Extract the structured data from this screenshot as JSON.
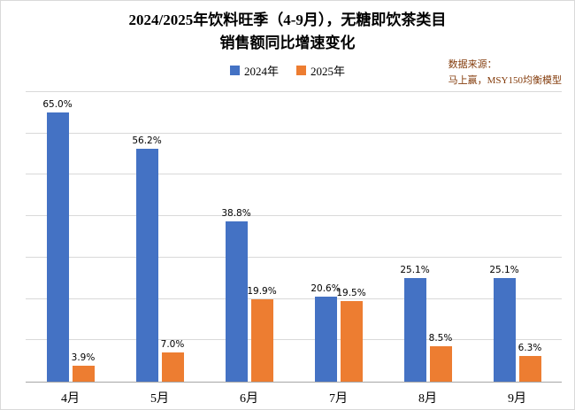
{
  "title": {
    "line1": "2024/2025年饮料旺季（4-9月），无糖即饮茶类目",
    "line2": "销售额同比增速变化"
  },
  "source_note": {
    "line1": "数据来源：",
    "line2": "马上赢，MSY150均衡模型",
    "color": "#843C0C"
  },
  "chart_data": {
    "type": "bar",
    "categories": [
      "4月",
      "5月",
      "6月",
      "7月",
      "8月",
      "9月"
    ],
    "series": [
      {
        "name": "2024年",
        "color": "#4472C4",
        "values": [
          65.0,
          56.2,
          38.8,
          20.6,
          25.1,
          25.1
        ]
      },
      {
        "name": "2025年",
        "color": "#ED7D31",
        "values": [
          3.9,
          7.0,
          19.9,
          19.5,
          8.5,
          6.3
        ]
      }
    ],
    "value_suffix": "%",
    "ylim": [
      0,
      70
    ],
    "grid_step": 10,
    "grid": true,
    "legend_position": "top-center",
    "gridline_color": "#D9D9D9",
    "axis_line_color": "#A6A6A6",
    "background": "#FFFFFF"
  }
}
